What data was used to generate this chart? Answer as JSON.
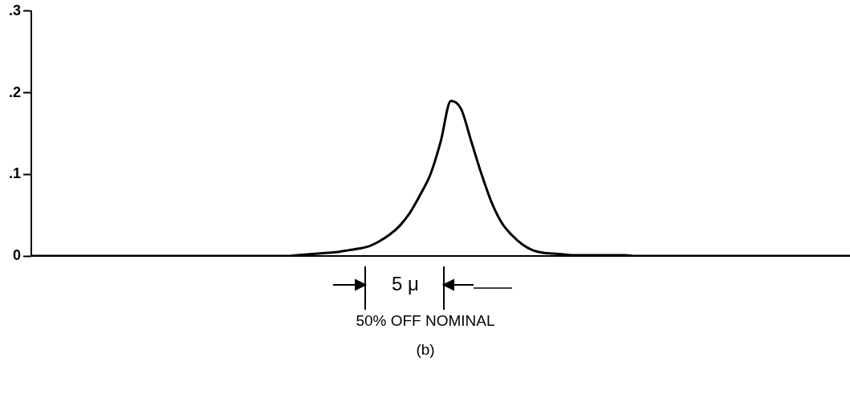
{
  "chart_data": {
    "type": "line",
    "categories": [
      null,
      null,
      null,
      null,
      null,
      null,
      null,
      null,
      null,
      null,
      null,
      null,
      null,
      null,
      null,
      null,
      null,
      null,
      null,
      null,
      null,
      null,
      null,
      null,
      null,
      null,
      null,
      null,
      null,
      null,
      null,
      null,
      null,
      null,
      null,
      null,
      null,
      null,
      null,
      null,
      null,
      null,
      null,
      null,
      null,
      null,
      null,
      null,
      null,
      null,
      null,
      null,
      null,
      null,
      null,
      null,
      null,
      null,
      null,
      null,
      null,
      null,
      null,
      null,
      null,
      null,
      null,
      null,
      null,
      null,
      null,
      null,
      null,
      null,
      null,
      null,
      null,
      null,
      null,
      null,
      null
    ],
    "series": [
      {
        "color": "#000000",
        "values": [
          0,
          0,
          0,
          0,
          0,
          0,
          0,
          0,
          0,
          0,
          0,
          0,
          0,
          0,
          0,
          0,
          0,
          0,
          0,
          0,
          0,
          0,
          0,
          0,
          0,
          0,
          0.001,
          0.002,
          0.003,
          0.004,
          0.005,
          0.007,
          0.009,
          0.012,
          0.018,
          0.026,
          0.037,
          0.053,
          0.075,
          0.1,
          0.14,
          0.19,
          0.18,
          0.14,
          0.1,
          0.065,
          0.04,
          0.025,
          0.014,
          0.007,
          0.004,
          0.003,
          0.002,
          0.001,
          0.001,
          0.001,
          0.001,
          0.001,
          0.001,
          0,
          0,
          0,
          0,
          0,
          0,
          0,
          0,
          0,
          0,
          0,
          0,
          0,
          0,
          0,
          0,
          0,
          0,
          0,
          0,
          0,
          0
        ]
      }
    ],
    "ylim": [
      0,
      0.3
    ],
    "yticks": [
      {
        "value": 0,
        "label": "0"
      },
      {
        "value": 0.1,
        "label": ".1"
      },
      {
        "value": 0.2,
        "label": ".2"
      },
      {
        "value": 0.3,
        "label": ".3"
      }
    ],
    "tick_labels": "y",
    "marker": "none",
    "line_style": "solid",
    "annotations": [
      "5 μ",
      "50% OFF NOMINAL",
      "(b)"
    ]
  }
}
